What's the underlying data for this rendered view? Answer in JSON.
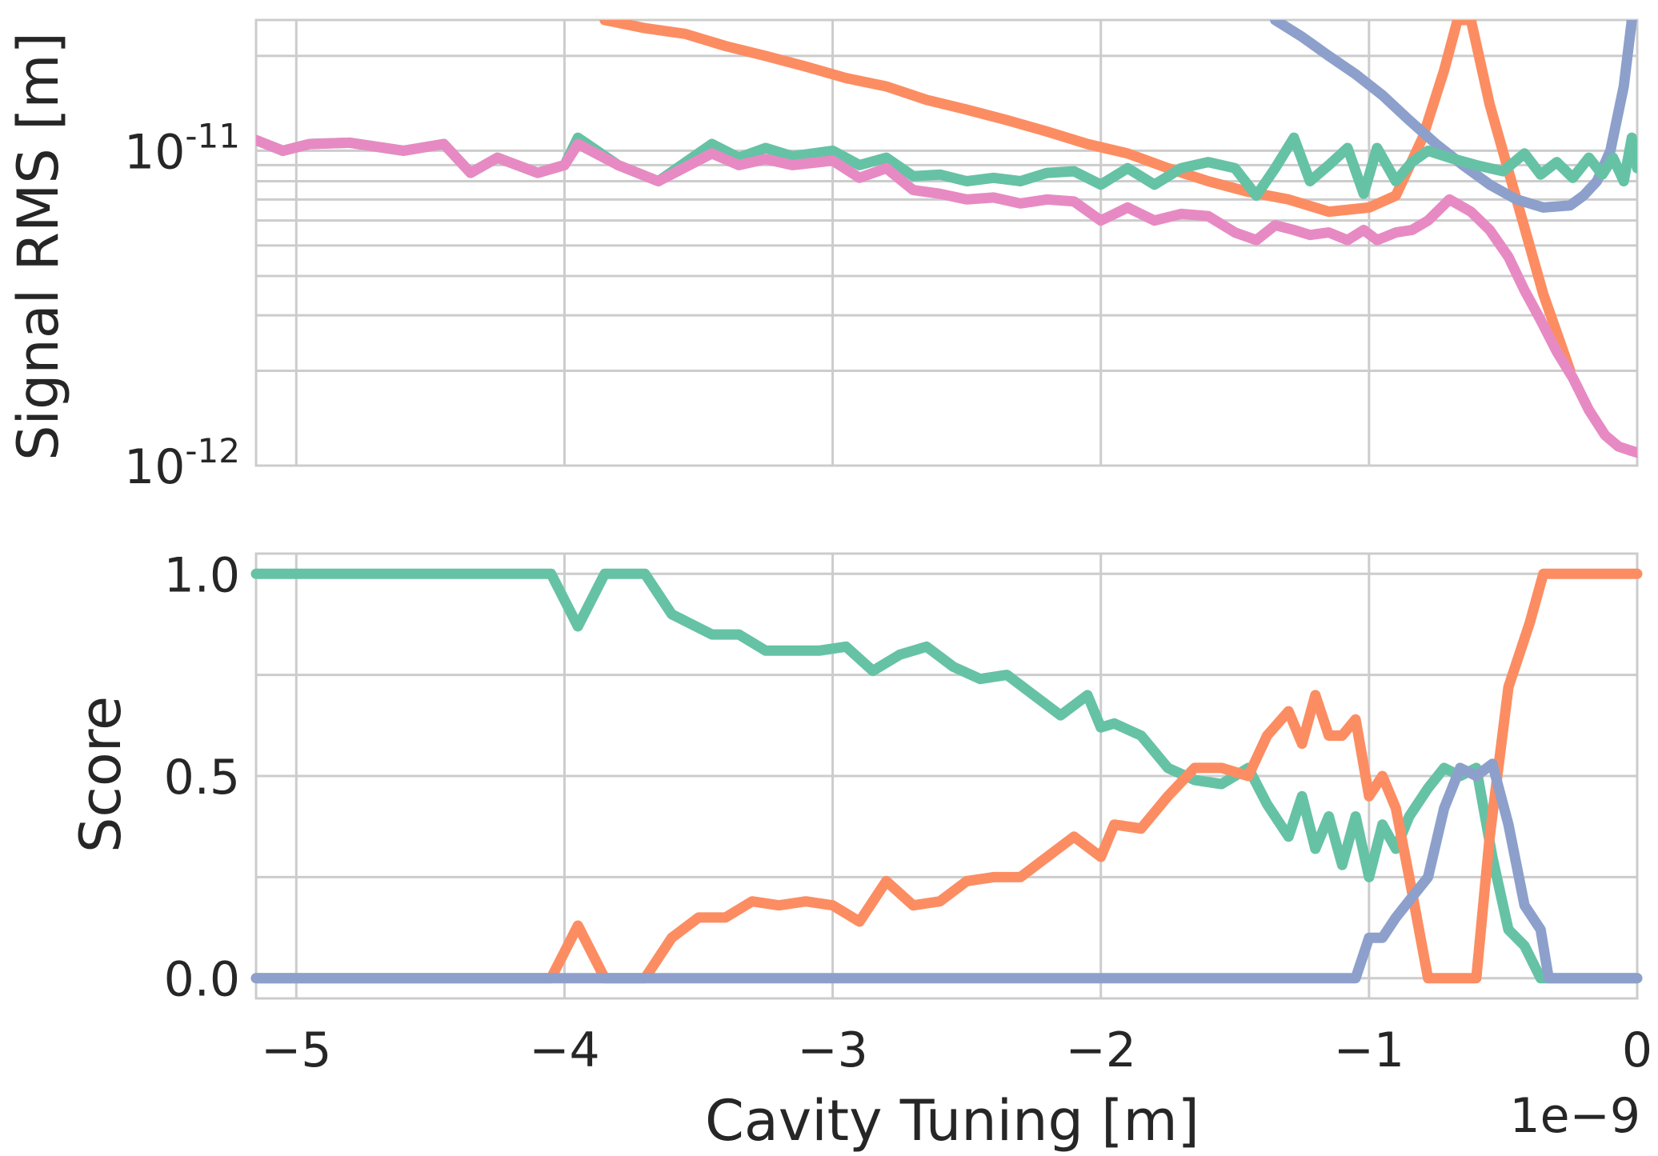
{
  "chart_data": [
    {
      "type": "line",
      "ylabel": "Signal RMS [m]",
      "yscale": "log",
      "ylim": [
        1e-12,
        2.6e-11
      ],
      "xlim": [
        -5.15e-09,
        0
      ],
      "grid": true,
      "ytick_labels": [
        {
          "value": 1e-11,
          "base": "10",
          "exp": "-11"
        },
        {
          "value": 1e-12,
          "base": "10",
          "exp": "-12"
        }
      ],
      "series": [
        {
          "color": "#fc8d62",
          "x": [
            -3.85e-09,
            -3.7e-09,
            -3.55e-09,
            -3.4e-09,
            -3.25e-09,
            -3.1e-09,
            -2.95e-09,
            -2.8e-09,
            -2.65e-09,
            -2.5e-09,
            -2.35e-09,
            -2.2e-09,
            -2.05e-09,
            -1.9e-09,
            -1.75e-09,
            -1.6e-09,
            -1.45e-09,
            -1.3e-09,
            -1.15e-09,
            -1e-09,
            -9e-10,
            -8e-10,
            -7.2e-10,
            -6.7e-10,
            -6.2e-10,
            -5.5e-10,
            -4.5e-10,
            -3.5e-10,
            -2.5e-10
          ],
          "values": [
            2.6e-11,
            2.45e-11,
            2.35e-11,
            2.15e-11,
            2e-11,
            1.85e-11,
            1.7e-11,
            1.6e-11,
            1.45e-11,
            1.35e-11,
            1.25e-11,
            1.15e-11,
            1.05e-11,
            9.8e-12,
            8.8e-12,
            8e-12,
            7.4e-12,
            7e-12,
            6.4e-12,
            6.6e-12,
            7.2e-12,
            1.1e-11,
            1.8e-11,
            2.6e-11,
            2.6e-11,
            1.4e-11,
            7e-12,
            3.5e-12,
            2e-12
          ]
        },
        {
          "color": "#8da0cb",
          "x": [
            -1.35e-09,
            -1.25e-09,
            -1.15e-09,
            -1.05e-09,
            -9.5e-10,
            -8.5e-10,
            -7.5e-10,
            -6.5e-10,
            -5.5e-10,
            -4.5e-10,
            -3.5e-10,
            -2.5e-10,
            -2e-10,
            -1.5e-10,
            -1e-10,
            -5e-11,
            -2e-11
          ],
          "values": [
            2.6e-11,
            2.3e-11,
            2e-11,
            1.75e-11,
            1.5e-11,
            1.25e-11,
            1.05e-11,
            9e-12,
            7.8e-12,
            7e-12,
            6.6e-12,
            6.7e-12,
            7.2e-12,
            8e-12,
            1e-11,
            1.6e-11,
            2.6e-11
          ]
        },
        {
          "color": "#66c2a5",
          "x": [
            -5.15e-09,
            -5.05e-09,
            -4.95e-09,
            -4.8e-09,
            -4.6e-09,
            -4.45e-09,
            -4.35e-09,
            -4.25e-09,
            -4.1e-09,
            -4e-09,
            -3.95e-09,
            -3.8e-09,
            -3.65e-09,
            -3.45e-09,
            -3.35e-09,
            -3.25e-09,
            -3.15e-09,
            -3e-09,
            -2.9e-09,
            -2.8e-09,
            -2.7e-09,
            -2.6e-09,
            -2.5e-09,
            -2.4e-09,
            -2.3e-09,
            -2.2e-09,
            -2.1e-09,
            -2e-09,
            -1.9e-09,
            -1.8e-09,
            -1.7e-09,
            -1.6e-09,
            -1.5e-09,
            -1.42e-09,
            -1.35e-09,
            -1.28e-09,
            -1.22e-09,
            -1.15e-09,
            -1.08e-09,
            -1.02e-09,
            -9.7e-10,
            -9e-10,
            -8.4e-10,
            -7.8e-10,
            -7e-10,
            -6e-10,
            -5e-10,
            -4.2e-10,
            -3.6e-10,
            -3e-10,
            -2.4e-10,
            -1.8e-10,
            -1.3e-10,
            -9e-11,
            -5e-11,
            -2e-11,
            0
          ],
          "values": [
            1.08e-11,
            1e-11,
            1.05e-11,
            1.06e-11,
            1e-11,
            1.05e-11,
            8.5e-12,
            9.5e-12,
            8.5e-12,
            9e-12,
            1.1e-11,
            9e-12,
            8e-12,
            1.05e-11,
            9.5e-12,
            1.02e-11,
            9.6e-12,
            1e-11,
            9e-12,
            9.5e-12,
            8.3e-12,
            8.4e-12,
            8e-12,
            8.2e-12,
            8e-12,
            8.5e-12,
            8.6e-12,
            7.8e-12,
            8.8e-12,
            7.8e-12,
            8.8e-12,
            9.2e-12,
            8.8e-12,
            7.2e-12,
            8.8e-12,
            1.1e-11,
            8e-12,
            9e-12,
            1.02e-11,
            7.3e-12,
            1.02e-11,
            8e-12,
            9.2e-12,
            1e-11,
            9.5e-12,
            9e-12,
            8.6e-12,
            9.8e-12,
            8.4e-12,
            9.2e-12,
            8.2e-12,
            9.5e-12,
            8.4e-12,
            9.5e-12,
            8e-12,
            1.1e-11,
            8.8e-12
          ]
        },
        {
          "color": "#e78ac3",
          "x": [
            -5.15e-09,
            -5.05e-09,
            -4.95e-09,
            -4.8e-09,
            -4.6e-09,
            -4.45e-09,
            -4.35e-09,
            -4.25e-09,
            -4.1e-09,
            -4e-09,
            -3.95e-09,
            -3.8e-09,
            -3.65e-09,
            -3.45e-09,
            -3.35e-09,
            -3.25e-09,
            -3.15e-09,
            -3e-09,
            -2.9e-09,
            -2.8e-09,
            -2.7e-09,
            -2.6e-09,
            -2.5e-09,
            -2.4e-09,
            -2.3e-09,
            -2.2e-09,
            -2.1e-09,
            -2e-09,
            -1.9e-09,
            -1.8e-09,
            -1.7e-09,
            -1.6e-09,
            -1.5e-09,
            -1.42e-09,
            -1.35e-09,
            -1.28e-09,
            -1.22e-09,
            -1.15e-09,
            -1.08e-09,
            -1.02e-09,
            -9.7e-10,
            -9e-10,
            -8.4e-10,
            -7.8e-10,
            -7e-10,
            -6.2e-10,
            -5.5e-10,
            -4.8e-10,
            -4.2e-10,
            -3.6e-10,
            -3e-10,
            -2.4e-10,
            -1.8e-10,
            -1.2e-10,
            -7e-11,
            -3e-11,
            0
          ],
          "values": [
            1.08e-11,
            1e-11,
            1.05e-11,
            1.06e-11,
            1e-11,
            1.05e-11,
            8.5e-12,
            9.5e-12,
            8.5e-12,
            9e-12,
            1.05e-11,
            9e-12,
            8e-12,
            9.8e-12,
            9e-12,
            9.4e-12,
            9e-12,
            9.3e-12,
            8.2e-12,
            8.8e-12,
            7.5e-12,
            7.3e-12,
            7e-12,
            7.1e-12,
            6.8e-12,
            7e-12,
            6.9e-12,
            6e-12,
            6.6e-12,
            6e-12,
            6.3e-12,
            6.2e-12,
            5.5e-12,
            5.2e-12,
            5.8e-12,
            5.6e-12,
            5.4e-12,
            5.5e-12,
            5.2e-12,
            5.6e-12,
            5.2e-12,
            5.5e-12,
            5.6e-12,
            6e-12,
            7e-12,
            6.4e-12,
            5.6e-12,
            4.6e-12,
            3.6e-12,
            2.9e-12,
            2.3e-12,
            1.9e-12,
            1.5e-12,
            1.25e-12,
            1.15e-12,
            1.12e-12,
            1.1e-12
          ]
        }
      ]
    },
    {
      "type": "line",
      "ylabel": "Score",
      "xlabel": "Cavity Tuning [m]",
      "xlim": [
        -5.15e-09,
        0
      ],
      "ylim": [
        -0.05,
        1.05
      ],
      "grid": true,
      "x_offset_label": "1e−9",
      "xticks": [
        -5e-09,
        -4e-09,
        -3e-09,
        -2e-09,
        -1e-09,
        0
      ],
      "xtick_labels": [
        "−5",
        "−4",
        "−3",
        "−2",
        "−1",
        "0"
      ],
      "yticks": [
        0.0,
        0.5,
        1.0
      ],
      "ytick_labels": [
        "0.0",
        "0.5",
        "1.0"
      ],
      "series": [
        {
          "color": "#66c2a5",
          "x": [
            -5.15e-09,
            -4.05e-09,
            -3.95e-09,
            -3.85e-09,
            -3.7e-09,
            -3.6e-09,
            -3.45e-09,
            -3.35e-09,
            -3.25e-09,
            -3.15e-09,
            -3.05e-09,
            -2.95e-09,
            -2.85e-09,
            -2.75e-09,
            -2.65e-09,
            -2.55e-09,
            -2.45e-09,
            -2.35e-09,
            -2.25e-09,
            -2.15e-09,
            -2.05e-09,
            -2e-09,
            -1.95e-09,
            -1.85e-09,
            -1.75e-09,
            -1.65e-09,
            -1.55e-09,
            -1.45e-09,
            -1.38e-09,
            -1.3e-09,
            -1.25e-09,
            -1.2e-09,
            -1.15e-09,
            -1.1e-09,
            -1.05e-09,
            -1e-09,
            -9.5e-10,
            -9e-10,
            -8.5e-10,
            -7.8e-10,
            -7.2e-10,
            -6.6e-10,
            -6e-10,
            -5.4e-10,
            -4.8e-10,
            -4.2e-10,
            -3.6e-10,
            -3.2e-10,
            -3e-10,
            0
          ],
          "values": [
            1.0,
            1.0,
            0.87,
            1.0,
            1.0,
            0.9,
            0.85,
            0.85,
            0.81,
            0.81,
            0.81,
            0.82,
            0.76,
            0.8,
            0.82,
            0.77,
            0.74,
            0.75,
            0.7,
            0.65,
            0.7,
            0.62,
            0.63,
            0.6,
            0.52,
            0.49,
            0.48,
            0.52,
            0.43,
            0.35,
            0.45,
            0.32,
            0.4,
            0.28,
            0.4,
            0.25,
            0.38,
            0.32,
            0.4,
            0.47,
            0.52,
            0.5,
            0.52,
            0.3,
            0.12,
            0.08,
            0.0,
            0.0,
            0.0,
            0.0
          ]
        },
        {
          "color": "#fc8d62",
          "x": [
            -5.15e-09,
            -4.05e-09,
            -3.95e-09,
            -3.85e-09,
            -3.7e-09,
            -3.6e-09,
            -3.5e-09,
            -3.4e-09,
            -3.3e-09,
            -3.2e-09,
            -3.1e-09,
            -3e-09,
            -2.9e-09,
            -2.8e-09,
            -2.7e-09,
            -2.6e-09,
            -2.5e-09,
            -2.4e-09,
            -2.3e-09,
            -2.2e-09,
            -2.1e-09,
            -2e-09,
            -1.95e-09,
            -1.85e-09,
            -1.75e-09,
            -1.65e-09,
            -1.55e-09,
            -1.45e-09,
            -1.38e-09,
            -1.3e-09,
            -1.25e-09,
            -1.2e-09,
            -1.15e-09,
            -1.1e-09,
            -1.05e-09,
            -1e-09,
            -9.5e-10,
            -9e-10,
            -8.5e-10,
            -7.8e-10,
            -7.2e-10,
            -6e-10,
            -5.5e-10,
            -4.8e-10,
            -4e-10,
            -3.5e-10,
            -3e-10,
            0
          ],
          "values": [
            0.0,
            0.0,
            0.13,
            0.0,
            0.0,
            0.1,
            0.15,
            0.15,
            0.19,
            0.18,
            0.19,
            0.18,
            0.14,
            0.24,
            0.18,
            0.19,
            0.24,
            0.25,
            0.25,
            0.3,
            0.35,
            0.3,
            0.38,
            0.37,
            0.45,
            0.52,
            0.52,
            0.5,
            0.6,
            0.66,
            0.58,
            0.7,
            0.6,
            0.6,
            0.64,
            0.45,
            0.5,
            0.42,
            0.25,
            0.0,
            0.0,
            0.0,
            0.35,
            0.72,
            0.88,
            1.0,
            1.0,
            1.0
          ]
        },
        {
          "color": "#8da0cb",
          "x": [
            -5.15e-09,
            -1.05e-09,
            -1e-09,
            -9.5e-10,
            -9e-10,
            -8.4e-10,
            -7.8e-10,
            -7.2e-10,
            -6.6e-10,
            -6e-10,
            -5.4e-10,
            -4.8e-10,
            -4.2e-10,
            -3.6e-10,
            -3.3e-10,
            0
          ],
          "values": [
            0.0,
            0.0,
            0.1,
            0.1,
            0.15,
            0.2,
            0.25,
            0.42,
            0.52,
            0.5,
            0.53,
            0.38,
            0.18,
            0.12,
            0.0,
            0.0
          ]
        }
      ]
    }
  ]
}
